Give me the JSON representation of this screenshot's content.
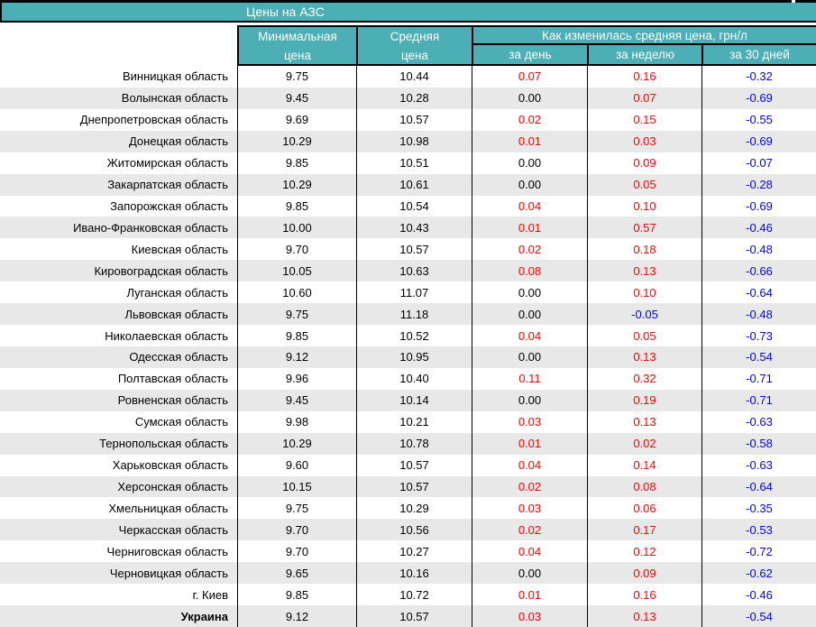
{
  "title": "Цены на АЗС",
  "colors": {
    "header_bg": "#4BAFB5",
    "stripe": "#E8E8E8",
    "positive_change": "#FF0000",
    "negative_change": "#0000FF",
    "zero_change": "#000000",
    "border": "#000000"
  },
  "chart_data": {
    "type": "table",
    "title": "Цены на АЗС",
    "column_group_label": "Как изменилась средняя цена, грн/л",
    "columns": {
      "region": "",
      "min": "Минимальная цена",
      "avg": "Средняя цена",
      "day": "за день",
      "week": "за неделю",
      "month": "за 30 дней"
    },
    "rows": [
      {
        "region": "Винницкая область",
        "min": "9.75",
        "avg": "10.44",
        "day": "0.07",
        "week": "0.16",
        "month": "-0.32"
      },
      {
        "region": "Волынская область",
        "min": "9.45",
        "avg": "10.28",
        "day": "0.00",
        "week": "0.07",
        "month": "-0.69"
      },
      {
        "region": "Днепропетровская область",
        "min": "9.69",
        "avg": "10.57",
        "day": "0.02",
        "week": "0.15",
        "month": "-0.55"
      },
      {
        "region": "Донецкая область",
        "min": "10.29",
        "avg": "10.98",
        "day": "0.01",
        "week": "0.03",
        "month": "-0.69"
      },
      {
        "region": "Житомирская область",
        "min": "9.85",
        "avg": "10.51",
        "day": "0.00",
        "week": "0.09",
        "month": "-0.07"
      },
      {
        "region": "Закарпатская область",
        "min": "10.29",
        "avg": "10.61",
        "day": "0.00",
        "week": "0.05",
        "month": "-0.28"
      },
      {
        "region": "Запорожская область",
        "min": "9.85",
        "avg": "10.54",
        "day": "0.04",
        "week": "0.10",
        "month": "-0.69"
      },
      {
        "region": "Ивано-Франковская область",
        "min": "10.00",
        "avg": "10.43",
        "day": "0.01",
        "week": "0.57",
        "month": "-0.46"
      },
      {
        "region": "Киевская область",
        "min": "9.70",
        "avg": "10.57",
        "day": "0.02",
        "week": "0.18",
        "month": "-0.48"
      },
      {
        "region": "Кировоградская область",
        "min": "10.05",
        "avg": "10.63",
        "day": "0.08",
        "week": "0.13",
        "month": "-0.66"
      },
      {
        "region": "Луганская область",
        "min": "10.60",
        "avg": "11.07",
        "day": "0.00",
        "week": "0.10",
        "month": "-0.64"
      },
      {
        "region": "Львовская область",
        "min": "9.75",
        "avg": "11.18",
        "day": "0.00",
        "week": "-0.05",
        "month": "-0.48"
      },
      {
        "region": "Николаевская область",
        "min": "9.85",
        "avg": "10.52",
        "day": "0.04",
        "week": "0.05",
        "month": "-0.73"
      },
      {
        "region": "Одесская область",
        "min": "9.12",
        "avg": "10.95",
        "day": "0.00",
        "week": "0.13",
        "month": "-0.54"
      },
      {
        "region": "Полтавская область",
        "min": "9.96",
        "avg": "10.40",
        "day": "0.11",
        "week": "0.32",
        "month": "-0.71"
      },
      {
        "region": "Ровненская область",
        "min": "9.45",
        "avg": "10.14",
        "day": "0.00",
        "week": "0.19",
        "month": "-0.71"
      },
      {
        "region": "Сумская область",
        "min": "9.98",
        "avg": "10.21",
        "day": "0.03",
        "week": "0.13",
        "month": "-0.63"
      },
      {
        "region": "Тернопольская область",
        "min": "10.29",
        "avg": "10.78",
        "day": "0.01",
        "week": "0.02",
        "month": "-0.58"
      },
      {
        "region": "Харьковская область",
        "min": "9.60",
        "avg": "10.57",
        "day": "0.04",
        "week": "0.14",
        "month": "-0.63"
      },
      {
        "region": "Херсонская область",
        "min": "10.15",
        "avg": "10.57",
        "day": "0.02",
        "week": "0.08",
        "month": "-0.64"
      },
      {
        "region": "Хмельницкая область",
        "min": "9.75",
        "avg": "10.29",
        "day": "0.03",
        "week": "0.06",
        "month": "-0.35"
      },
      {
        "region": "Черкасская область",
        "min": "9.70",
        "avg": "10.56",
        "day": "0.02",
        "week": "0.17",
        "month": "-0.53"
      },
      {
        "region": "Черниговская область",
        "min": "9.70",
        "avg": "10.27",
        "day": "0.04",
        "week": "0.12",
        "month": "-0.72"
      },
      {
        "region": "Черновицкая область",
        "min": "9.65",
        "avg": "10.16",
        "day": "0.00",
        "week": "0.09",
        "month": "-0.62"
      },
      {
        "region": "г. Киев",
        "min": "9.85",
        "avg": "10.72",
        "day": "0.01",
        "week": "0.16",
        "month": "-0.46"
      },
      {
        "region": "Украина",
        "bold": true,
        "min": "9.12",
        "avg": "10.57",
        "day": "0.03",
        "week": "0.13",
        "month": "-0.54"
      }
    ]
  }
}
